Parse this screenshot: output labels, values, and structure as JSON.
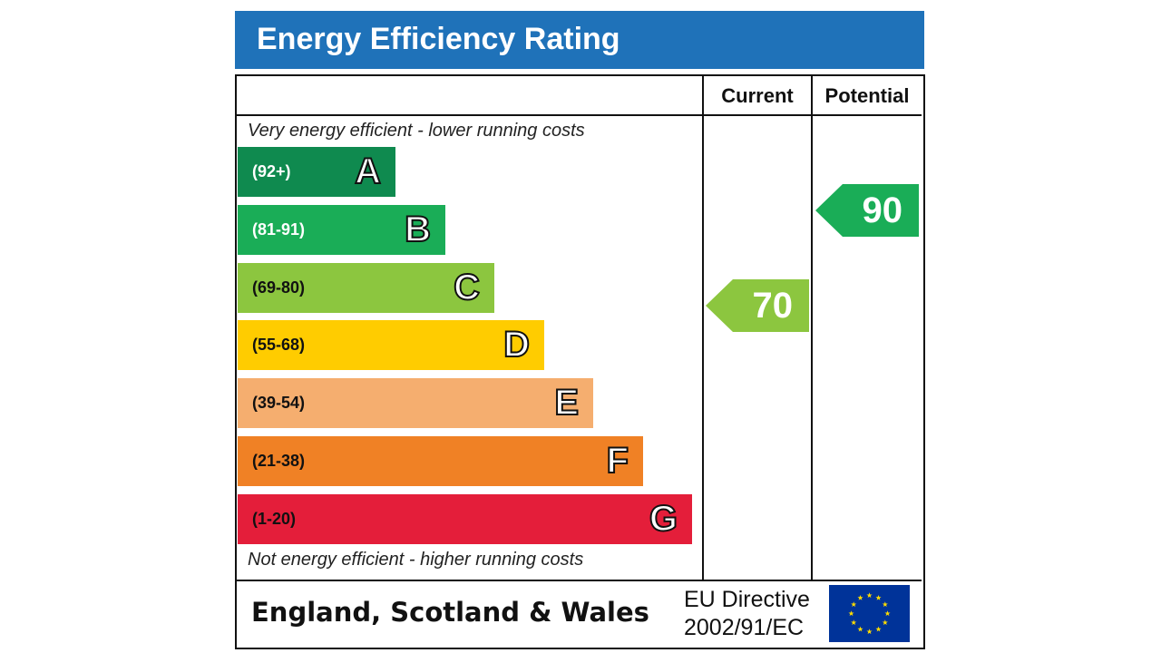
{
  "title": "Energy Efficiency Rating",
  "columns": {
    "current": "Current",
    "potential": "Potential"
  },
  "captions": {
    "top": "Very energy efficient - lower running costs",
    "bottom": "Not energy efficient - higher running costs"
  },
  "footer": {
    "region": "England, Scotland & Wales",
    "directive_line1": "EU Directive",
    "directive_line2": "2002/91/EC",
    "flag_icon": "eu-flag-icon"
  },
  "colors": {
    "title_bar": "#1f72b9",
    "current_arrow": "#8cc63f",
    "potential_arrow": "#1aad57"
  },
  "chart_data": {
    "type": "bar",
    "categories": [
      "A",
      "B",
      "C",
      "D",
      "E",
      "F",
      "G"
    ],
    "ranges": [
      "(92+)",
      "(81-91)",
      "(69-80)",
      "(55-68)",
      "(39-54)",
      "(21-38)",
      "(1-20)"
    ],
    "band_colors": [
      "#0f8a4f",
      "#1aad57",
      "#8cc63f",
      "#ffcc00",
      "#f5ae6f",
      "#f08125",
      "#e41e3a"
    ],
    "range_text_colors": [
      "#ffffff",
      "#ffffff",
      "#111111",
      "#111111",
      "#111111",
      "#111111",
      "#111111"
    ],
    "current": {
      "label": "Current",
      "value": 70,
      "band": "C"
    },
    "potential": {
      "label": "Potential",
      "value": 90,
      "band": "B"
    },
    "xlim": [
      1,
      100
    ]
  }
}
